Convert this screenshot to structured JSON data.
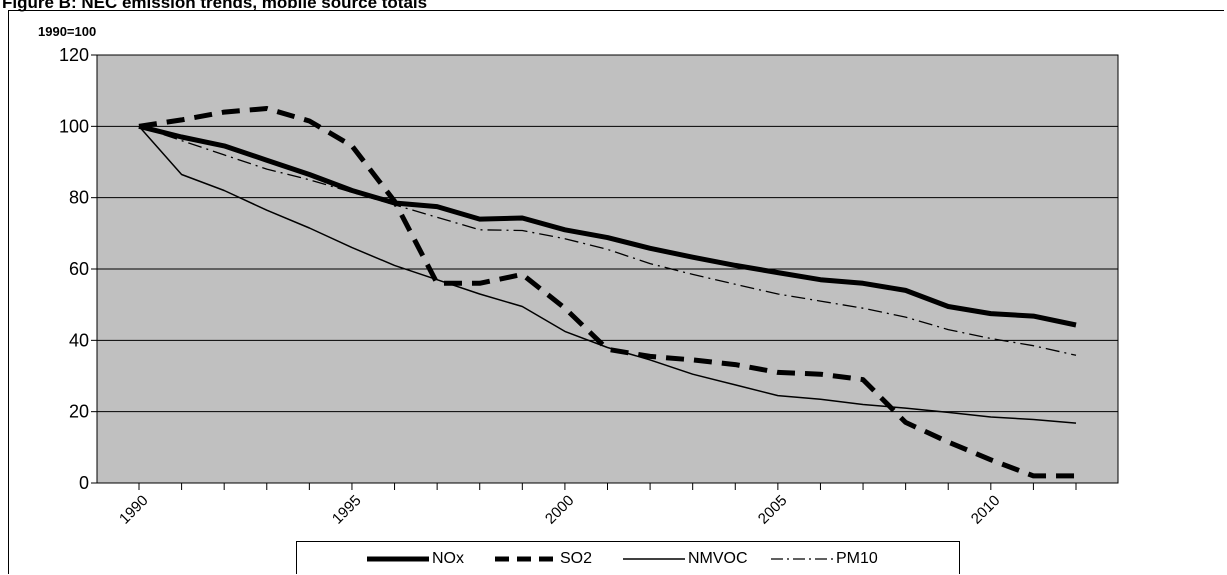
{
  "title": "Figure B: NEC emission trends, mobile source totals",
  "chart_data": {
    "type": "line",
    "unit_label": "1990=100",
    "x": [
      1990,
      1991,
      1992,
      1993,
      1994,
      1995,
      1996,
      1997,
      1998,
      1999,
      2000,
      2001,
      2002,
      2003,
      2004,
      2005,
      2006,
      2007,
      2008,
      2009,
      2010,
      2011,
      2012
    ],
    "x_tick_labels": [
      "1990",
      "1995",
      "2000",
      "2005",
      "2010"
    ],
    "x_ticks": [
      1990,
      1995,
      2000,
      2005,
      2010
    ],
    "xlim": [
      1990,
      2012
    ],
    "ylim": [
      0,
      120
    ],
    "y_ticks": [
      0,
      20,
      40,
      60,
      80,
      100,
      120
    ],
    "y_tick_labels": [
      "0",
      "20",
      "40",
      "60",
      "80",
      "100",
      "120"
    ],
    "grid": "horizontal",
    "plot_background": "#c0c0c0",
    "legend_position": "bottom",
    "series": [
      {
        "name": "NOx",
        "style": "thick-solid",
        "color": "#000000",
        "values": [
          100,
          97,
          94.5,
          90.5,
          86.5,
          82,
          78.5,
          77.5,
          74,
          74.3,
          71,
          68.8,
          65.8,
          63.3,
          61,
          59,
          57,
          56,
          54,
          49.5,
          47.5,
          46.8,
          44.3
        ]
      },
      {
        "name": "SO2",
        "style": "thick-dashed",
        "color": "#000000",
        "values": [
          100,
          101.8,
          104,
          105,
          101.5,
          94.5,
          79,
          56,
          56,
          58.5,
          49,
          37.5,
          35.5,
          34.5,
          33.2,
          31,
          30.5,
          29,
          17,
          11.5,
          6.5,
          2,
          2
        ]
      },
      {
        "name": "NMVOC",
        "style": "thin-solid",
        "color": "#000000",
        "values": [
          100,
          86.5,
          82,
          76.5,
          71.5,
          66,
          61,
          57,
          53,
          49.5,
          42.5,
          38,
          34.5,
          30.5,
          27.5,
          24.5,
          23.5,
          22,
          21,
          19.8,
          18.5,
          17.8,
          16.8
        ]
      },
      {
        "name": "PM10",
        "style": "dash-dot",
        "color": "#000000",
        "values": [
          100,
          96,
          92,
          88,
          85,
          81.5,
          78,
          74.5,
          71,
          70.8,
          68.5,
          65.5,
          61.5,
          58.5,
          55.7,
          53,
          51,
          49,
          46.5,
          43,
          40.5,
          38.5,
          35.8
        ]
      }
    ]
  }
}
